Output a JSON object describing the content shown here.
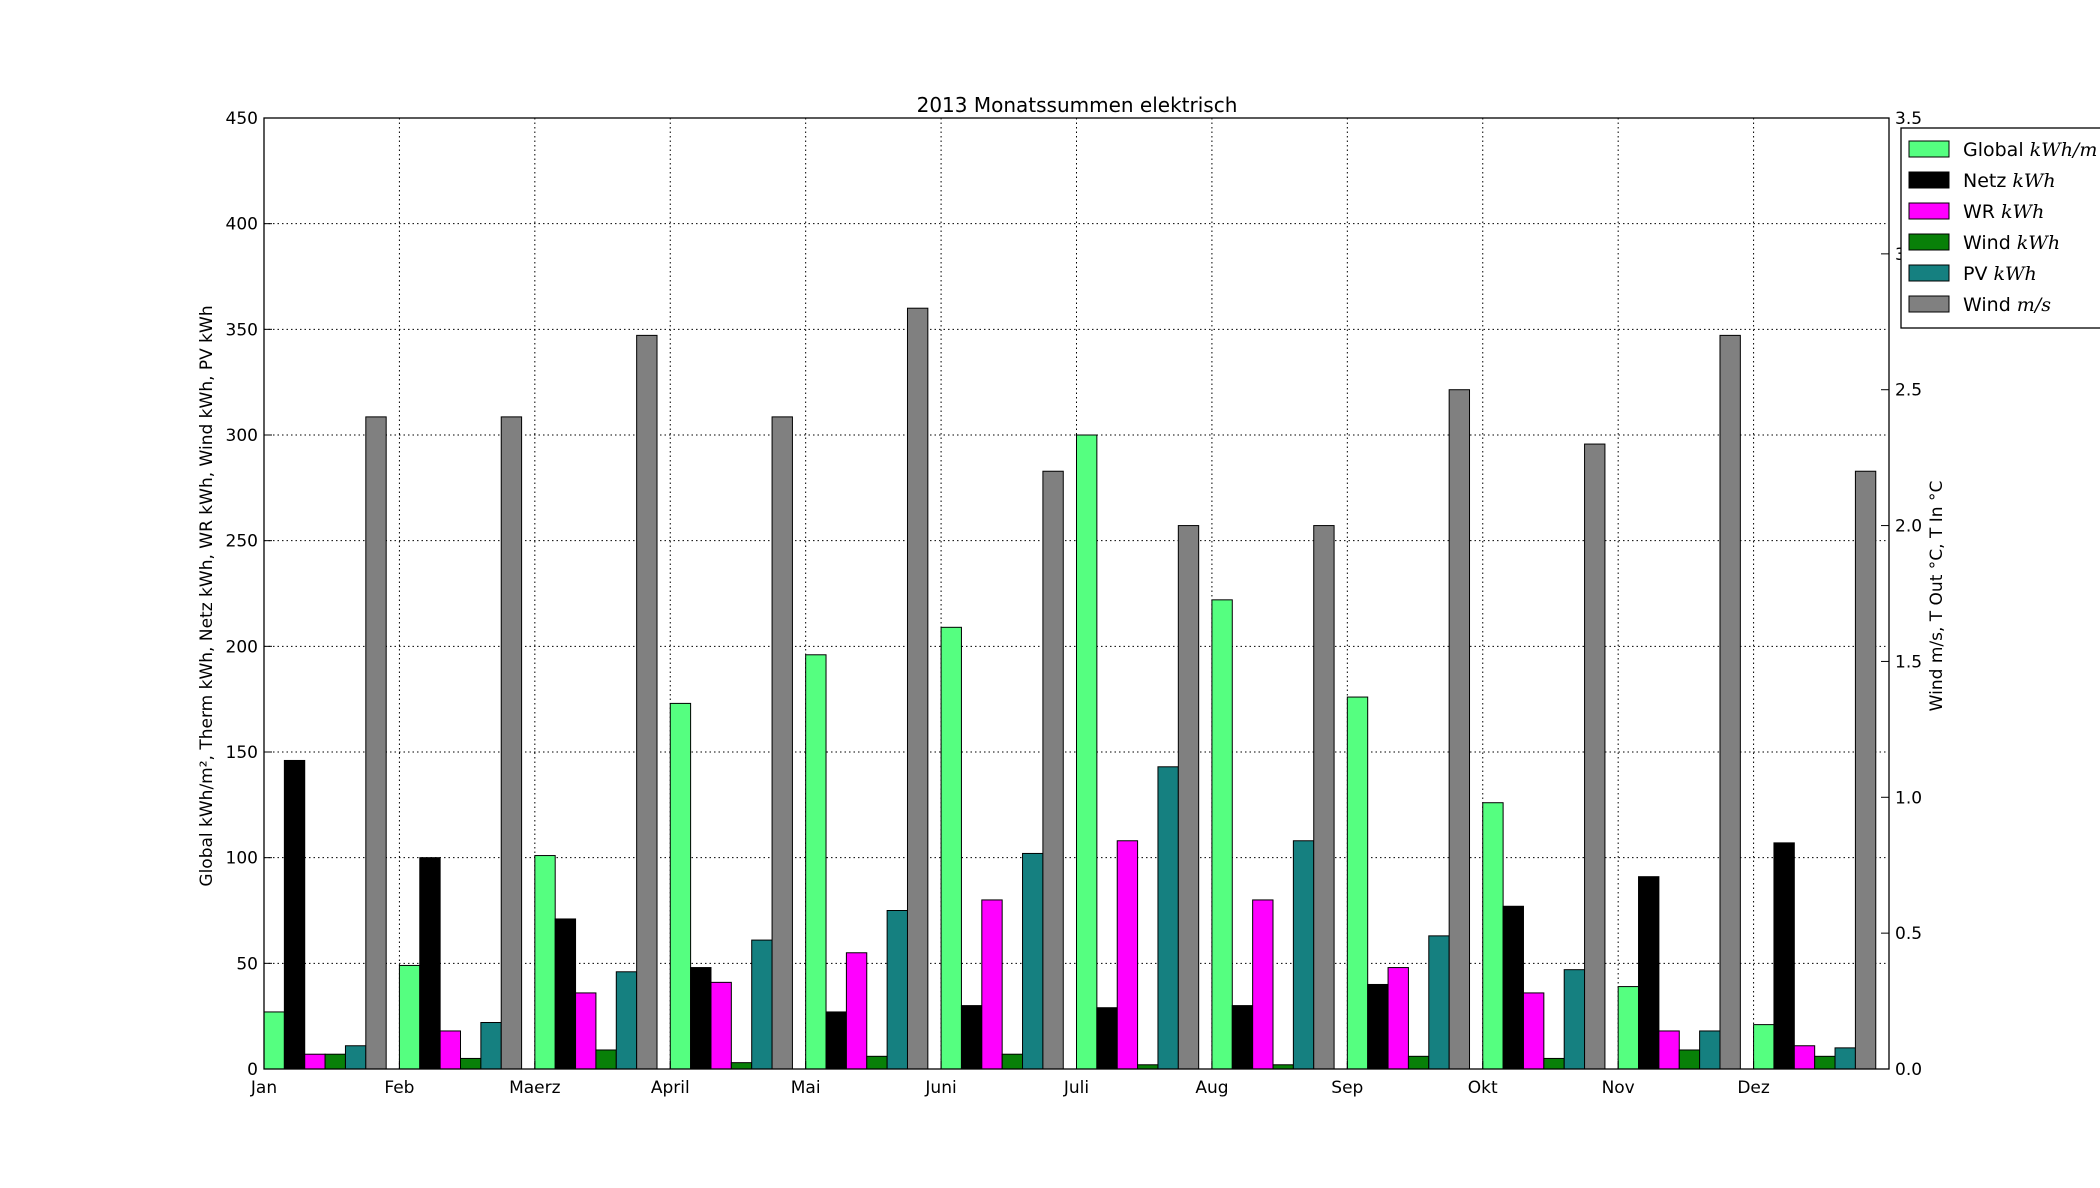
{
  "chart_data": {
    "type": "bar",
    "title": "2013 Monatssummen elektrisch",
    "categories": [
      "Jan",
      "Feb",
      "Maerz",
      "April",
      "Mai",
      "Juni",
      "Juli",
      "Aug",
      "Sep",
      "Okt",
      "Nov",
      "Dez"
    ],
    "ylabel_left": "Global kWh/m², Therm kWh, Netz kWh, WR kWh, Wind kWh, PV kWh",
    "ylabel_right": "Wind m/s, T Out °C, T In °C",
    "ylim_left": [
      0,
      450
    ],
    "ylim_right": [
      0,
      3.5
    ],
    "yticks_left": [
      "0",
      "50",
      "100",
      "150",
      "200",
      "250",
      "300",
      "350",
      "400",
      "450"
    ],
    "yticks_right": [
      "0.0",
      "0.5",
      "1.0",
      "1.5",
      "2.0",
      "2.5",
      "3.0",
      "3.5"
    ],
    "grid": true,
    "legend_position": "top-right, outside plot",
    "series": [
      {
        "name": "Global",
        "unit": "kWh/m",
        "axis": "left",
        "color": "#55ff80",
        "values": [
          27,
          49,
          101,
          173,
          196,
          209,
          300,
          222,
          176,
          126,
          39,
          21
        ]
      },
      {
        "name": "Netz",
        "unit": "kWh",
        "axis": "left",
        "color": "#000000",
        "values": [
          146,
          100,
          71,
          48,
          27,
          30,
          29,
          30,
          40,
          77,
          91,
          107
        ]
      },
      {
        "name": "WR",
        "unit": "kWh",
        "axis": "left",
        "color": "#ff00ff",
        "values": [
          7,
          18,
          36,
          41,
          55,
          80,
          108,
          80,
          48,
          36,
          18,
          11
        ]
      },
      {
        "name": "Wind",
        "unit": "kWh",
        "axis": "left",
        "color": "#088008",
        "values": [
          7,
          5,
          9,
          3,
          6,
          7,
          2,
          2,
          6,
          5,
          9,
          6
        ]
      },
      {
        "name": "PV",
        "unit": "kWh",
        "axis": "left",
        "color": "#158080",
        "values": [
          11,
          22,
          46,
          61,
          75,
          102,
          143,
          108,
          63,
          47,
          18,
          10
        ]
      },
      {
        "name": "Wind",
        "unit": "m/s",
        "axis": "right",
        "color": "#808080",
        "values": [
          2.4,
          2.4,
          2.7,
          2.4,
          2.8,
          2.2,
          2.0,
          2.0,
          2.5,
          2.3,
          2.7,
          2.2
        ]
      }
    ]
  }
}
